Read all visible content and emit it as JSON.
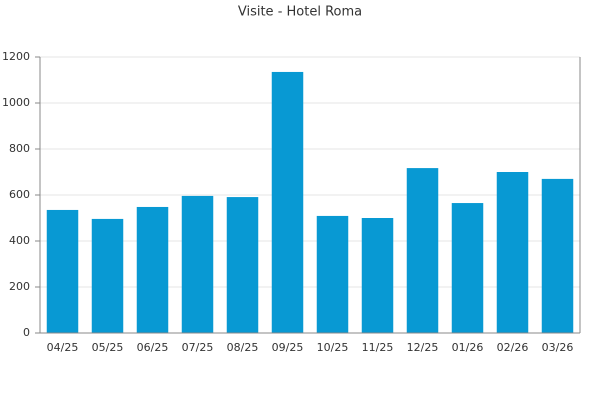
{
  "chart_data": {
    "type": "bar",
    "title": "Visite - Hotel Roma",
    "categories": [
      "04/25",
      "05/25",
      "06/25",
      "07/25",
      "08/25",
      "09/25",
      "10/25",
      "11/25",
      "12/25",
      "01/26",
      "02/26",
      "03/26"
    ],
    "values": [
      535,
      496,
      548,
      596,
      591,
      1135,
      509,
      500,
      717,
      565,
      700,
      670
    ],
    "color": "#0899d3",
    "ylim": [
      0,
      1200
    ],
    "yticks": [
      0,
      200,
      400,
      600,
      800,
      1000,
      1200
    ],
    "grid": true
  }
}
